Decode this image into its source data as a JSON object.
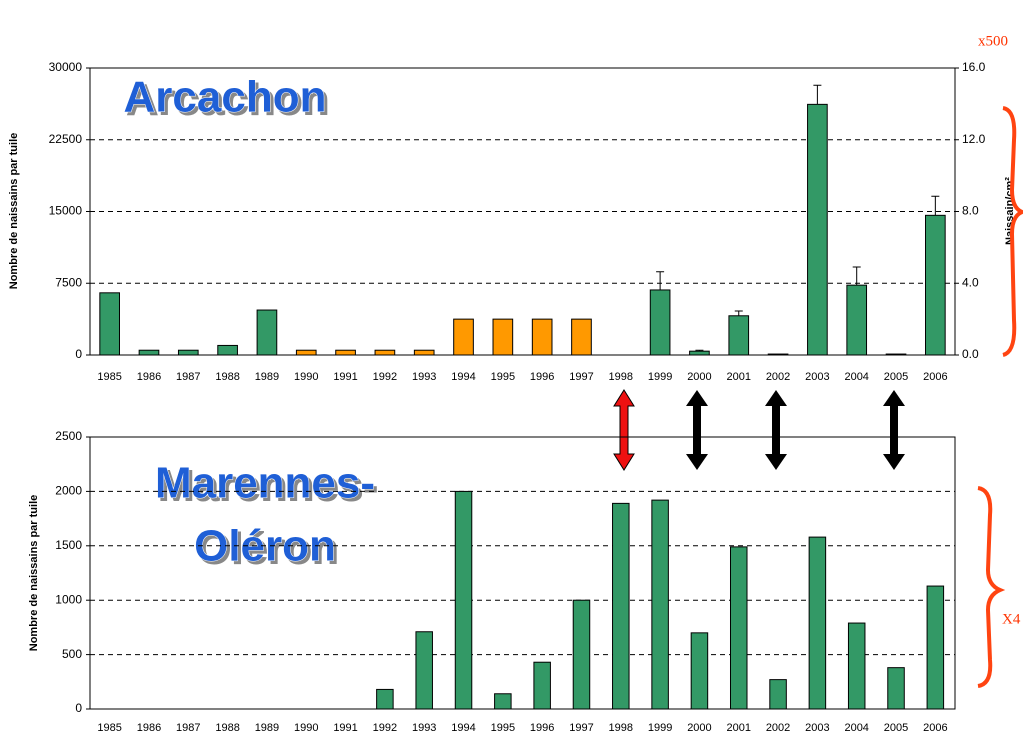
{
  "chart_data": [
    {
      "type": "bar",
      "title": "Arcachon",
      "y_label": "Nombre de naissains par tuile",
      "y2_label": "Naissain/cm²",
      "annotation": "x500",
      "categories": [
        "1985",
        "1986",
        "1987",
        "1988",
        "1989",
        "1990",
        "1991",
        "1992",
        "1993",
        "1994",
        "1995",
        "1996",
        "1997",
        "1998",
        "1999",
        "2000",
        "2001",
        "2002",
        "2003",
        "2004",
        "2005",
        "2006"
      ],
      "values": [
        6500,
        500,
        500,
        1000,
        4700,
        500,
        500,
        500,
        500,
        3750,
        3750,
        3750,
        3750,
        0,
        6800,
        400,
        4100,
        100,
        26200,
        7300,
        100,
        14600
      ],
      "errors": [
        null,
        null,
        null,
        null,
        null,
        null,
        null,
        null,
        null,
        null,
        null,
        null,
        null,
        null,
        1900,
        100,
        500,
        null,
        2000,
        1900,
        null,
        2000
      ],
      "colors": [
        "#339966",
        "#339966",
        "#339966",
        "#339966",
        "#339966",
        "#ff9900",
        "#ff9900",
        "#ff9900",
        "#ff9900",
        "#ff9900",
        "#ff9900",
        "#ff9900",
        "#ff9900",
        "#339966",
        "#339966",
        "#339966",
        "#339966",
        "#339966",
        "#339966",
        "#339966",
        "#339966",
        "#339966"
      ],
      "ylim": [
        0,
        30000
      ],
      "yticks": [
        0,
        7500,
        15000,
        22500,
        30000
      ],
      "y2lim": [
        0,
        16
      ],
      "y2ticks": [
        {
          "value": 0,
          "label": "0.0"
        },
        {
          "value": 4,
          "label": "4.0"
        },
        {
          "value": 8,
          "label": "8.0"
        },
        {
          "value": 12,
          "label": "12.0"
        },
        {
          "value": 16,
          "label": "16.0"
        }
      ],
      "grid": true
    },
    {
      "type": "bar",
      "title": [
        "Marennes-",
        "Oléron"
      ],
      "y_label": "Nombre de naissains par tuile",
      "annotation": "X4",
      "categories": [
        "1985",
        "1986",
        "1987",
        "1988",
        "1989",
        "1990",
        "1991",
        "1992",
        "1993",
        "1994",
        "1995",
        "1996",
        "1997",
        "1998",
        "1999",
        "2000",
        "2001",
        "2002",
        "2003",
        "2004",
        "2005",
        "2006"
      ],
      "values": [
        0,
        0,
        0,
        0,
        0,
        0,
        0,
        180,
        710,
        2000,
        140,
        430,
        1000,
        1890,
        1920,
        700,
        1490,
        270,
        1580,
        790,
        380,
        1130
      ],
      "color": "#339966",
      "ylim": [
        0,
        2500
      ],
      "yticks": [
        0,
        500,
        1000,
        1500,
        2000,
        2500
      ],
      "grid": true
    }
  ]
}
